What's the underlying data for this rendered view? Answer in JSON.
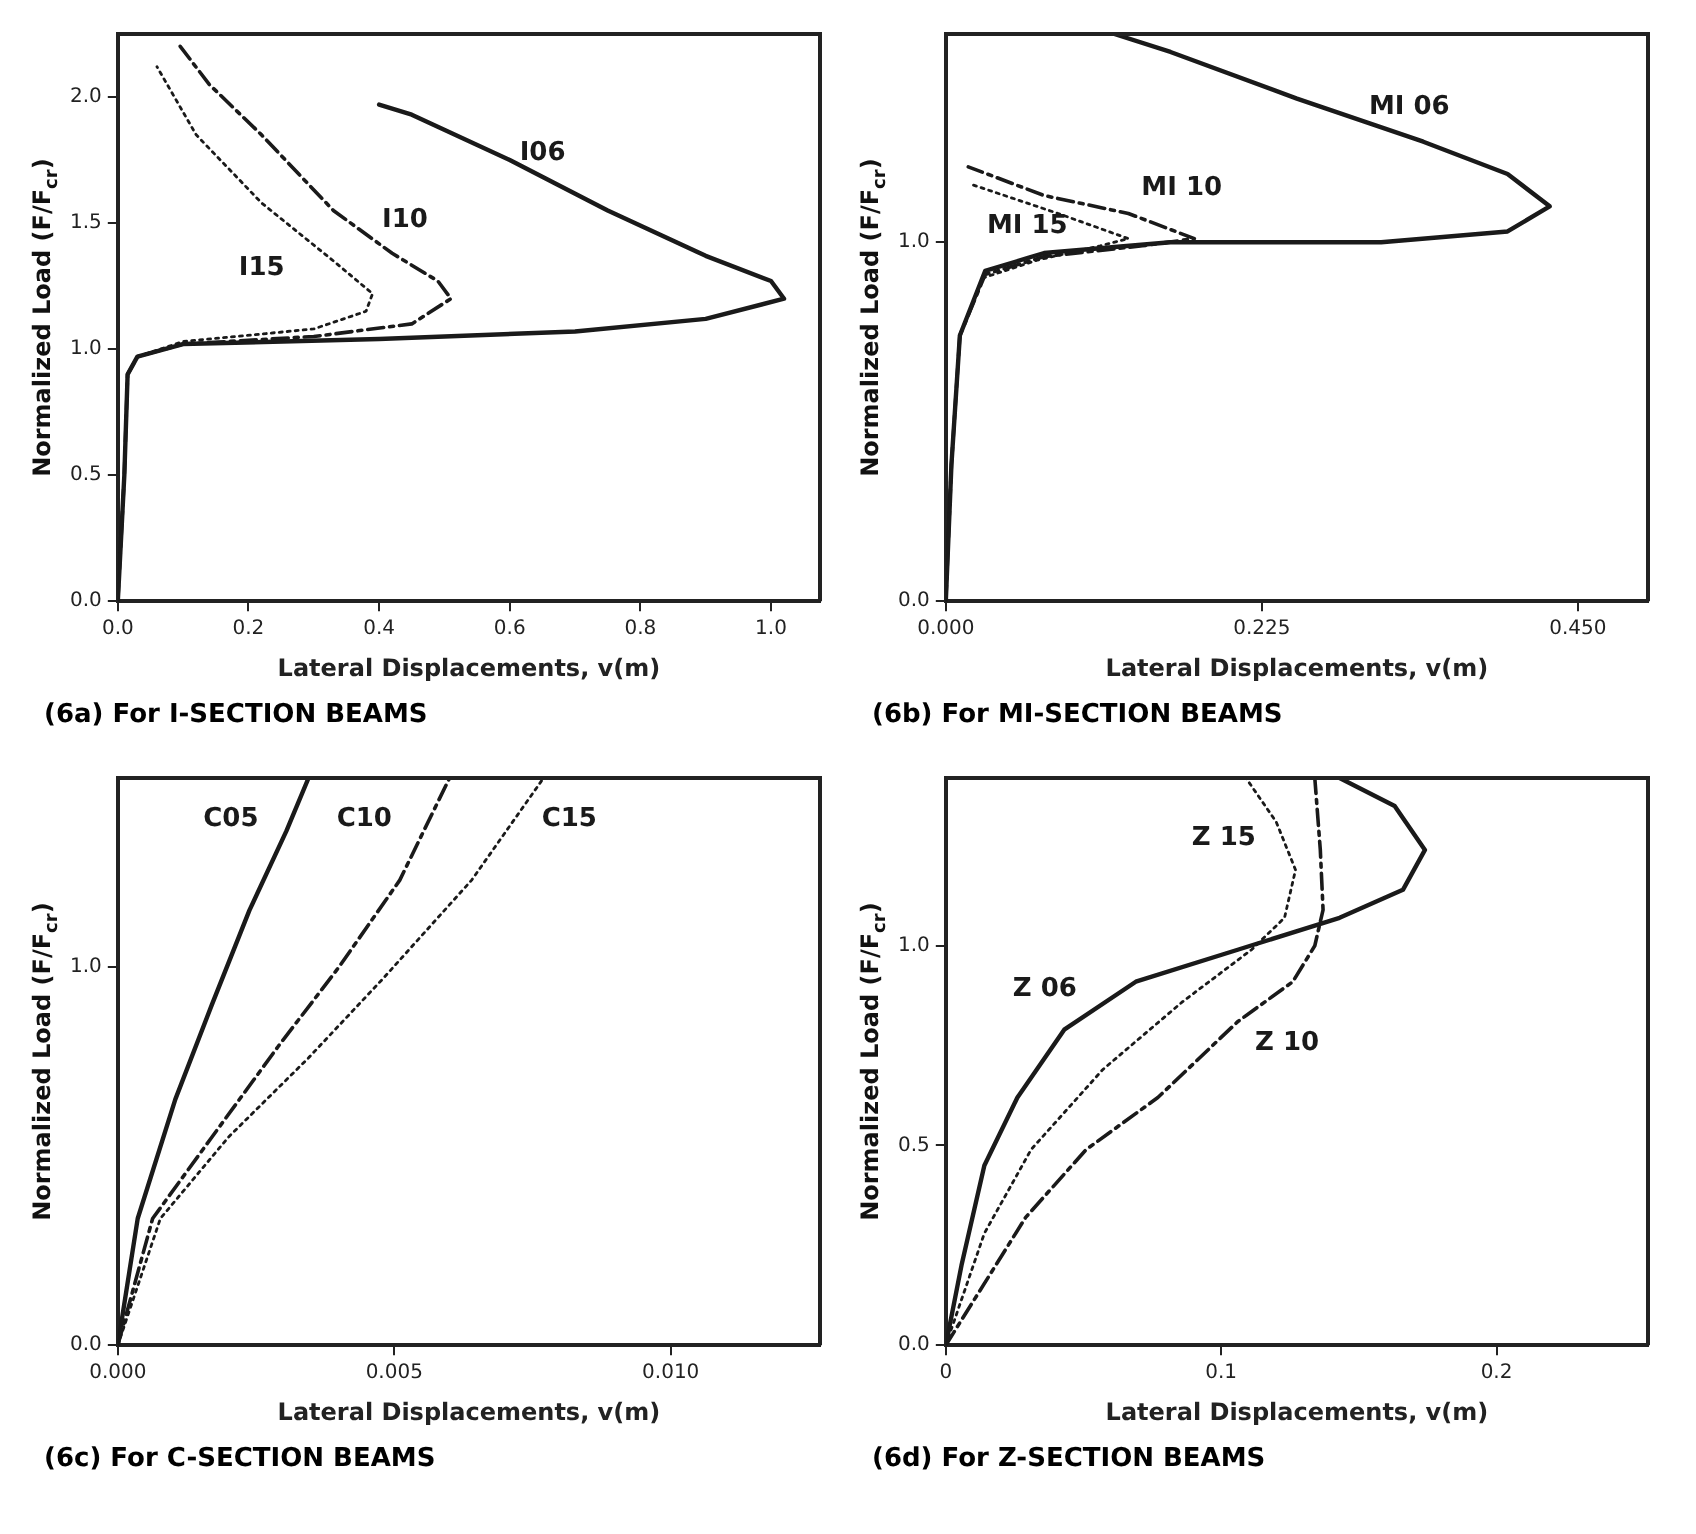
{
  "chart_data": [
    {
      "type": "line",
      "title": "(6a) For I-SECTION BEAMS",
      "xlabel": "Lateral Displacements, v(m)",
      "ylabel": "Normalized Load (F/F$_{cr}$)",
      "xlim": [
        0,
        1.075
      ],
      "ylim": [
        0,
        2.25
      ],
      "xticks": [
        {
          "value": 0,
          "label": "0.0"
        },
        {
          "value": 0.2,
          "label": "0.2"
        },
        {
          "value": 0.4,
          "label": "0.4"
        },
        {
          "value": 0.6,
          "label": "0.6"
        },
        {
          "value": 0.8,
          "label": "0.8"
        },
        {
          "value": 1,
          "label": "1.0"
        }
      ],
      "yticks": [
        {
          "value": 0,
          "label": "0.0"
        },
        {
          "value": 0.5,
          "label": "0.5"
        },
        {
          "value": 1,
          "label": "1.0"
        },
        {
          "value": 1.5,
          "label": "1.5"
        },
        {
          "value": 2,
          "label": "2.0"
        }
      ],
      "series": [
        {
          "name": "I06",
          "color": "#1a1a1a",
          "line_style": "solid",
          "x": [
            0,
            0.01,
            0.015,
            0.03,
            0.1,
            0.4,
            0.7,
            0.9,
            1.02,
            1.0,
            0.9,
            0.75,
            0.6,
            0.45,
            0.4
          ],
          "values": [
            0,
            0.5,
            0.9,
            0.97,
            1.02,
            1.04,
            1.07,
            1.12,
            1.2,
            1.27,
            1.37,
            1.55,
            1.75,
            1.93,
            1.97
          ]
        },
        {
          "name": "I10",
          "color": "#1a1a1a",
          "line_style": "dashed",
          "x": [
            0,
            0.01,
            0.015,
            0.03,
            0.1,
            0.3,
            0.45,
            0.51,
            0.49,
            0.42,
            0.33,
            0.22,
            0.14,
            0.09
          ],
          "values": [
            0,
            0.5,
            0.9,
            0.97,
            1.02,
            1.05,
            1.1,
            1.2,
            1.27,
            1.38,
            1.55,
            1.85,
            2.05,
            2.22
          ]
        },
        {
          "name": "I15",
          "color": "#1a1a1a",
          "line_style": "dotted",
          "x": [
            0,
            0.01,
            0.015,
            0.03,
            0.1,
            0.3,
            0.38,
            0.39,
            0.33,
            0.22,
            0.12,
            0.06
          ],
          "values": [
            0,
            0.5,
            0.9,
            0.97,
            1.03,
            1.08,
            1.15,
            1.22,
            1.35,
            1.58,
            1.85,
            2.12
          ]
        }
      ]
    },
    {
      "type": "line",
      "title": "(6b) For MI-SECTION BEAMS",
      "xlabel": "Lateral Displacements, v(m)",
      "ylabel": "Normalized Load (F/F$_{cr}$)",
      "xlim": [
        0,
        0.5
      ],
      "ylim": [
        0,
        1.58
      ],
      "xticks": [
        {
          "value": 0,
          "label": "0.000"
        },
        {
          "value": 0.225,
          "label": "0.225"
        },
        {
          "value": 0.45,
          "label": "0.450"
        }
      ],
      "yticks": [
        {
          "value": 0,
          "label": "0.0"
        },
        {
          "value": 1,
          "label": "1.0"
        }
      ],
      "series": [
        {
          "name": "MI 06",
          "color": "#1a1a1a",
          "line_style": "solid",
          "x": [
            0,
            0.004,
            0.01,
            0.028,
            0.07,
            0.16,
            0.31,
            0.4,
            0.43,
            0.4,
            0.34,
            0.25,
            0.16,
            0.12
          ],
          "values": [
            0,
            0.38,
            0.74,
            0.92,
            0.97,
            1.0,
            1.0,
            1.03,
            1.1,
            1.19,
            1.28,
            1.4,
            1.53,
            1.58
          ]
        },
        {
          "name": "MI 10",
          "color": "#1a1a1a",
          "line_style": "dashed",
          "x": [
            0,
            0.004,
            0.01,
            0.028,
            0.07,
            0.14,
            0.177,
            0.13,
            0.07,
            0.016
          ],
          "values": [
            0,
            0.38,
            0.74,
            0.91,
            0.96,
            0.99,
            1.01,
            1.08,
            1.13,
            1.21
          ]
        },
        {
          "name": "MI 15",
          "color": "#1a1a1a",
          "line_style": "dotted",
          "x": [
            0,
            0.004,
            0.01,
            0.026,
            0.065,
            0.11,
            0.13,
            0.08,
            0.019
          ],
          "values": [
            0,
            0.38,
            0.74,
            0.9,
            0.95,
            0.99,
            1.01,
            1.08,
            1.16
          ]
        }
      ]
    },
    {
      "type": "line",
      "title": "(6c) For C-SECTION BEAMS",
      "xlabel": "Lateral Displacements, v(m)",
      "ylabel": "Normalized Load (F/F$_{cr}$)",
      "xlim": [
        0,
        0.0127
      ],
      "ylim": [
        0,
        1.5
      ],
      "xticks": [
        {
          "value": 0,
          "label": "0.000"
        },
        {
          "value": 0.005,
          "label": "0.005"
        },
        {
          "value": 0.01,
          "label": "0.010"
        }
      ],
      "yticks": [
        {
          "value": 0,
          "label": "0.0"
        },
        {
          "value": 1,
          "label": "1.0"
        }
      ],
      "series": [
        {
          "name": "C05",
          "color": "#1a1a1a",
          "line_style": "solid",
          "x": [
            0,
            0.00036,
            0.00104,
            0.0017,
            0.00238,
            0.00305,
            0.00345
          ],
          "values": [
            0,
            0.335,
            0.65,
            0.9,
            1.15,
            1.36,
            1.5
          ]
        },
        {
          "name": "C10",
          "color": "#1a1a1a",
          "line_style": "dashed",
          "x": [
            0,
            0.00063,
            0.0017,
            0.0029,
            0.004,
            0.0051,
            0.006
          ],
          "values": [
            0,
            0.335,
            0.55,
            0.79,
            1.0,
            1.23,
            1.5
          ]
        },
        {
          "name": "C15",
          "color": "#1a1a1a",
          "line_style": "dotted",
          "x": [
            0,
            0.00077,
            0.002,
            0.00345,
            0.0048,
            0.0064,
            0.0077
          ],
          "values": [
            0,
            0.335,
            0.55,
            0.76,
            0.97,
            1.23,
            1.5
          ]
        }
      ]
    },
    {
      "type": "line",
      "title": "(6d) For Z-SECTION BEAMS",
      "xlabel": "Lateral Displacements, v(m)",
      "ylabel": "Normalized Load (F/F$_{cr}$)",
      "xlim": [
        0,
        0.255
      ],
      "ylim": [
        0,
        1.42
      ],
      "xticks": [
        0,
        {
          "value": 0.1,
          "label": "0.1"
        },
        {
          "value": 0.2,
          "label": "0.2"
        }
      ],
      "yticks": [
        {
          "value": 0,
          "label": "0.0"
        },
        {
          "value": 0.5,
          "label": "0.5"
        },
        {
          "value": 1,
          "label": "1.0"
        }
      ],
      "series": [
        {
          "name": "Z 06",
          "color": "#1a1a1a",
          "line_style": "solid",
          "x": [
            0,
            0.0057,
            0.014,
            0.026,
            0.043,
            0.069,
            0.106,
            0.143,
            0.166,
            0.174,
            0.163,
            0.143
          ],
          "values": [
            0,
            0.2,
            0.45,
            0.62,
            0.79,
            0.91,
            0.99,
            1.07,
            1.14,
            1.24,
            1.35,
            1.42
          ]
        },
        {
          "name": "Z 10",
          "color": "#1a1a1a",
          "line_style": "dashed",
          "x": [
            0,
            0.029,
            0.051,
            0.077,
            0.106,
            0.126,
            0.134,
            0.137,
            0.136,
            0.134
          ],
          "values": [
            0,
            0.32,
            0.49,
            0.62,
            0.81,
            0.91,
            1.0,
            1.09,
            1.24,
            1.42
          ]
        },
        {
          "name": "Z 15",
          "color": "#1a1a1a",
          "line_style": "dotted",
          "x": [
            0,
            0.014,
            0.031,
            0.057,
            0.086,
            0.111,
            0.123,
            0.127,
            0.12,
            0.109
          ],
          "values": [
            0,
            0.28,
            0.49,
            0.69,
            0.86,
            0.99,
            1.07,
            1.19,
            1.31,
            1.42
          ]
        }
      ]
    }
  ]
}
